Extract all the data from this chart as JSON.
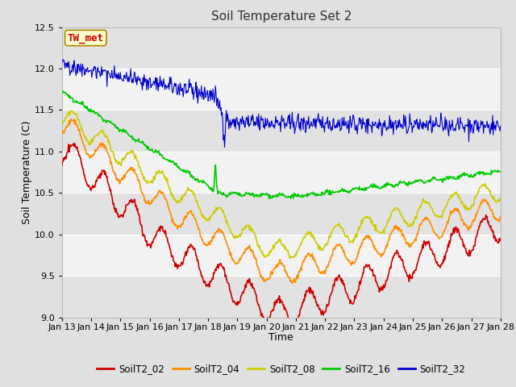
{
  "title": "Soil Temperature Set 2",
  "xlabel": "Time",
  "ylabel": "Soil Temperature (C)",
  "ylim": [
    9.0,
    12.5
  ],
  "xlim": [
    0,
    360
  ],
  "x_tick_labels": [
    "Jan 13",
    "Jan 14",
    "Jan 15",
    "Jan 16",
    "Jan 17",
    "Jan 18",
    "Jan 19",
    "Jan 20",
    "Jan 21",
    "Jan 22",
    "Jan 23",
    "Jan 24",
    "Jan 25",
    "Jan 26",
    "Jan 27",
    "Jan 28"
  ],
  "x_tick_positions": [
    0,
    24,
    48,
    72,
    96,
    120,
    144,
    168,
    192,
    216,
    240,
    264,
    288,
    312,
    336,
    360
  ],
  "series": {
    "SoilT2_02": {
      "color": "#cc0000",
      "lw": 1.2
    },
    "SoilT2_04": {
      "color": "#ff8c00",
      "lw": 1.2
    },
    "SoilT2_08": {
      "color": "#cccc00",
      "lw": 1.2
    },
    "SoilT2_16": {
      "color": "#00cc00",
      "lw": 1.2
    },
    "SoilT2_32": {
      "color": "#0000cc",
      "lw": 0.8
    }
  },
  "annotation": {
    "text": "TW_met",
    "fontsize": 9,
    "color": "#cc0000",
    "bg_color": "#ffffcc",
    "border_color": "#aa8800"
  },
  "fig_bg": "#e0e0e0",
  "plot_bg_light": "#f2f2f2",
  "plot_bg_dark": "#e2e2e2",
  "grid_color": "#ffffff",
  "n_points": 721,
  "yticks": [
    9.0,
    9.5,
    10.0,
    10.5,
    11.0,
    11.5,
    12.0,
    12.5
  ]
}
